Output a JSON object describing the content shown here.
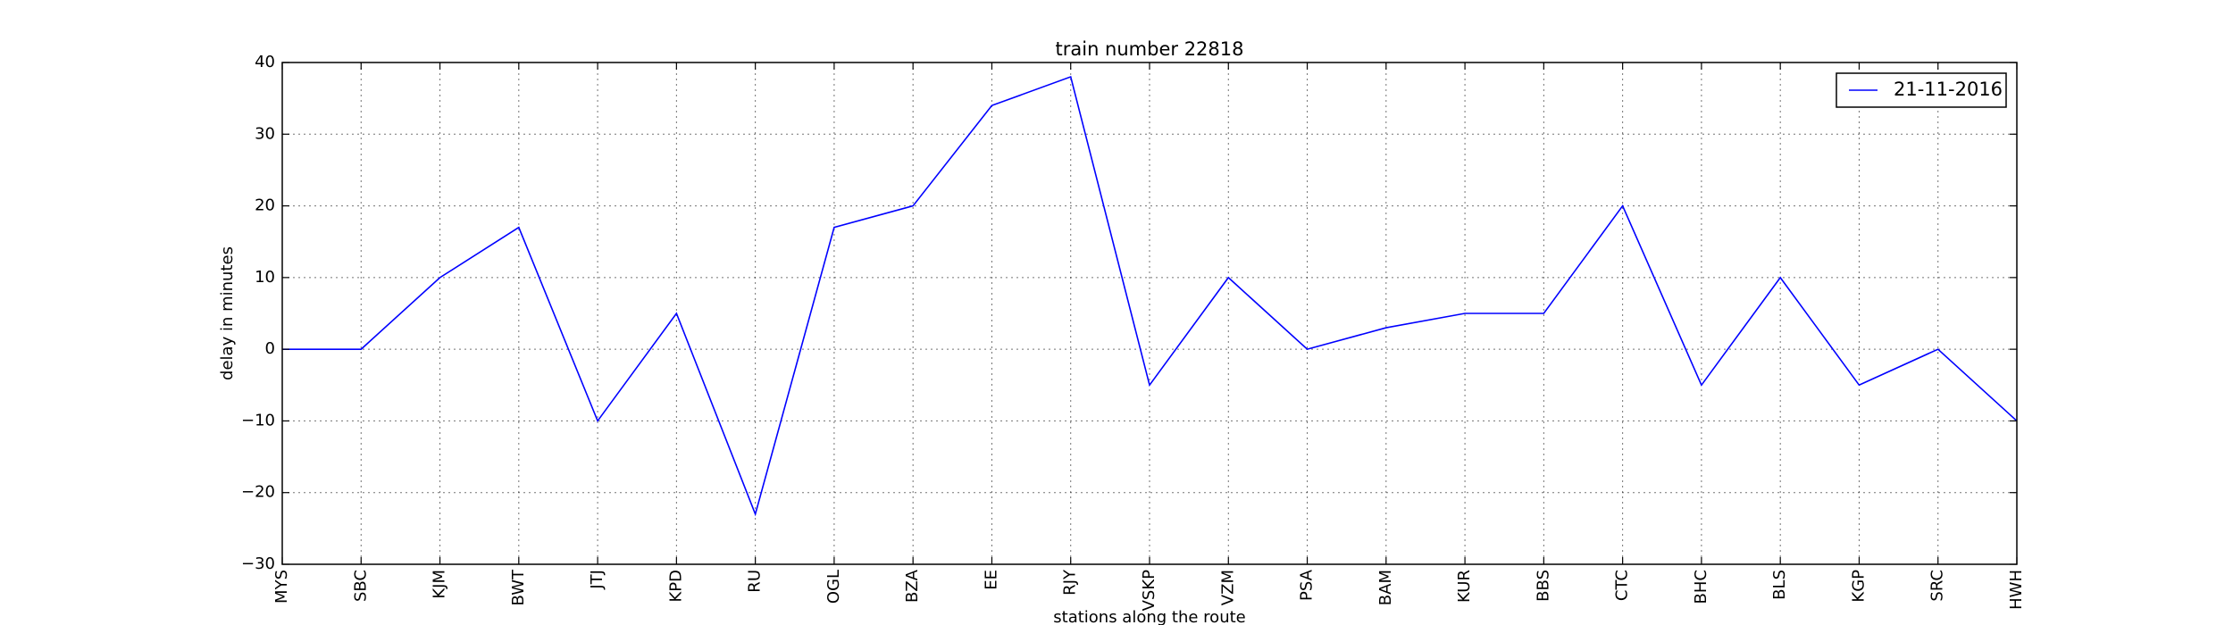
{
  "chart_data": {
    "type": "line",
    "title": "train number 22818",
    "xlabel": "stations along the route",
    "ylabel": "delay in minutes",
    "categories": [
      "MYS",
      "SBC",
      "KJM",
      "BWT",
      "JTJ",
      "KPD",
      "RU",
      "OGL",
      "BZA",
      "EE",
      "RJY",
      "VSKP",
      "VZM",
      "PSA",
      "BAM",
      "KUR",
      "BBS",
      "CTC",
      "BHC",
      "BLS",
      "KGP",
      "SRC",
      "HWH"
    ],
    "series": [
      {
        "name": "21-11-2016",
        "color": "#0000ff",
        "values": [
          0,
          0,
          10,
          17,
          -10,
          5,
          -23,
          17,
          20,
          34,
          38,
          -5,
          10,
          0,
          3,
          5,
          5,
          20,
          -5,
          10,
          -5,
          0,
          -10
        ]
      }
    ],
    "ylim": [
      -30,
      40
    ],
    "yticks": [
      -30,
      -20,
      -10,
      0,
      10,
      20,
      30,
      40
    ],
    "ytick_labels": [
      "−30",
      "−20",
      "−10",
      "0",
      "10",
      "20",
      "30",
      "40"
    ],
    "grid": true,
    "legend_position": "top-right"
  }
}
